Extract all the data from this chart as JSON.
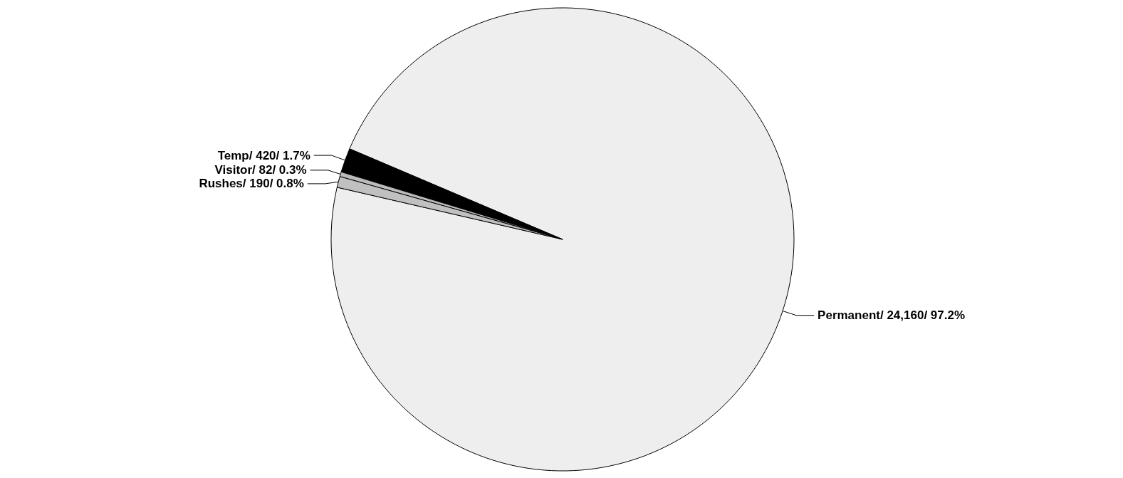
{
  "chart_data": {
    "type": "pie",
    "categories": [
      "Permanent/",
      "Temp/",
      "Visitor/",
      "Rushes/"
    ],
    "values": [
      24160,
      420,
      82,
      190
    ],
    "colors": [
      "#eeeeee",
      "#000000",
      "#bbbbbb",
      "#c0c0c0"
    ],
    "value_labels": [
      "24,160/ 97.2%",
      "420/ 1.7%",
      "82/ 0.3%",
      "190/ 0.8%"
    ],
    "legend": false
  }
}
